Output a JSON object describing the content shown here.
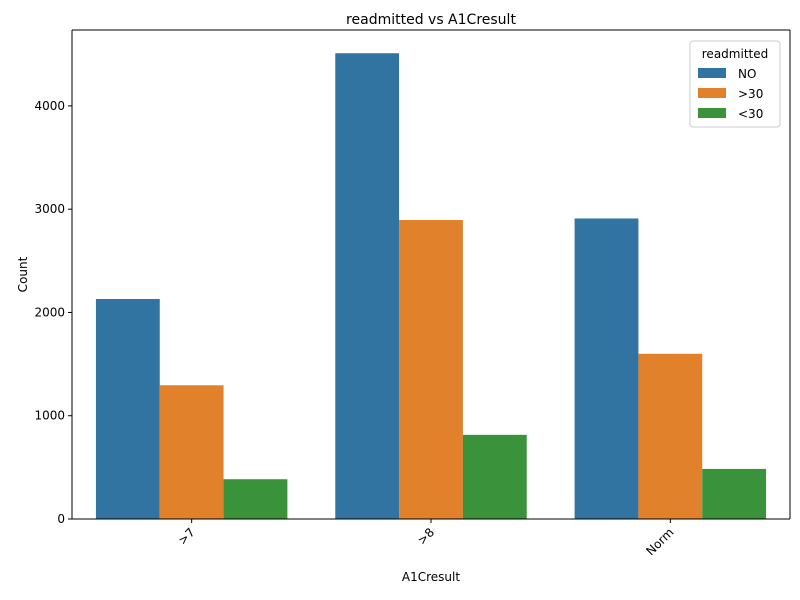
{
  "chart_data": {
    "type": "bar",
    "title": "readmitted vs A1Cresult",
    "xlabel": "A1Cresult",
    "ylabel": "Count",
    "categories": [
      ">7",
      ">8",
      "Norm"
    ],
    "series": [
      {
        "name": "NO",
        "color": "#3274a1",
        "values": [
          2130,
          4510,
          2910
        ]
      },
      {
        "name": ">30",
        "color": "#e1812c",
        "values": [
          1295,
          2895,
          1600
        ]
      },
      {
        "name": "<30",
        "color": "#3a923a",
        "values": [
          385,
          815,
          485
        ]
      }
    ],
    "ylim": [
      0,
      4735
    ],
    "yticks": [
      0,
      1000,
      2000,
      3000,
      4000
    ],
    "grid": false,
    "legend": {
      "title": "readmitted",
      "placement": "top-right"
    },
    "xtick_rotation": 45
  }
}
